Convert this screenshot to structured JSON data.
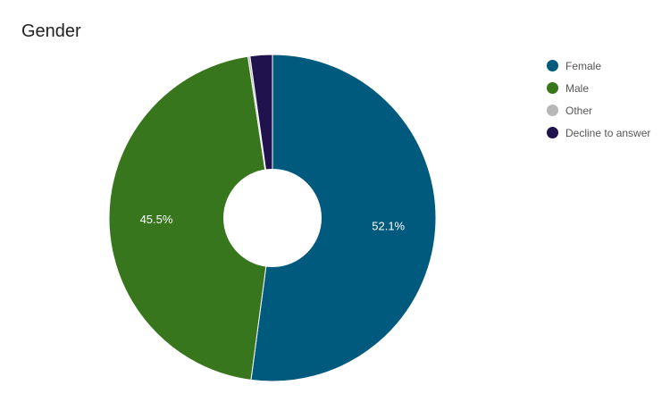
{
  "chart_data": {
    "type": "pie",
    "title": "Gender",
    "donut": true,
    "legend_position": "right",
    "series": [
      {
        "name": "Female",
        "value": 52.1,
        "label": "52.1%",
        "color": "#005a7d"
      },
      {
        "name": "Male",
        "value": 45.5,
        "label": "45.5%",
        "color": "#38761d"
      },
      {
        "name": "Other",
        "value": 0.2,
        "label": "",
        "color": "#b7b7b7"
      },
      {
        "name": "Decline to answer",
        "value": 2.2,
        "label": "",
        "color": "#20124d"
      }
    ]
  }
}
